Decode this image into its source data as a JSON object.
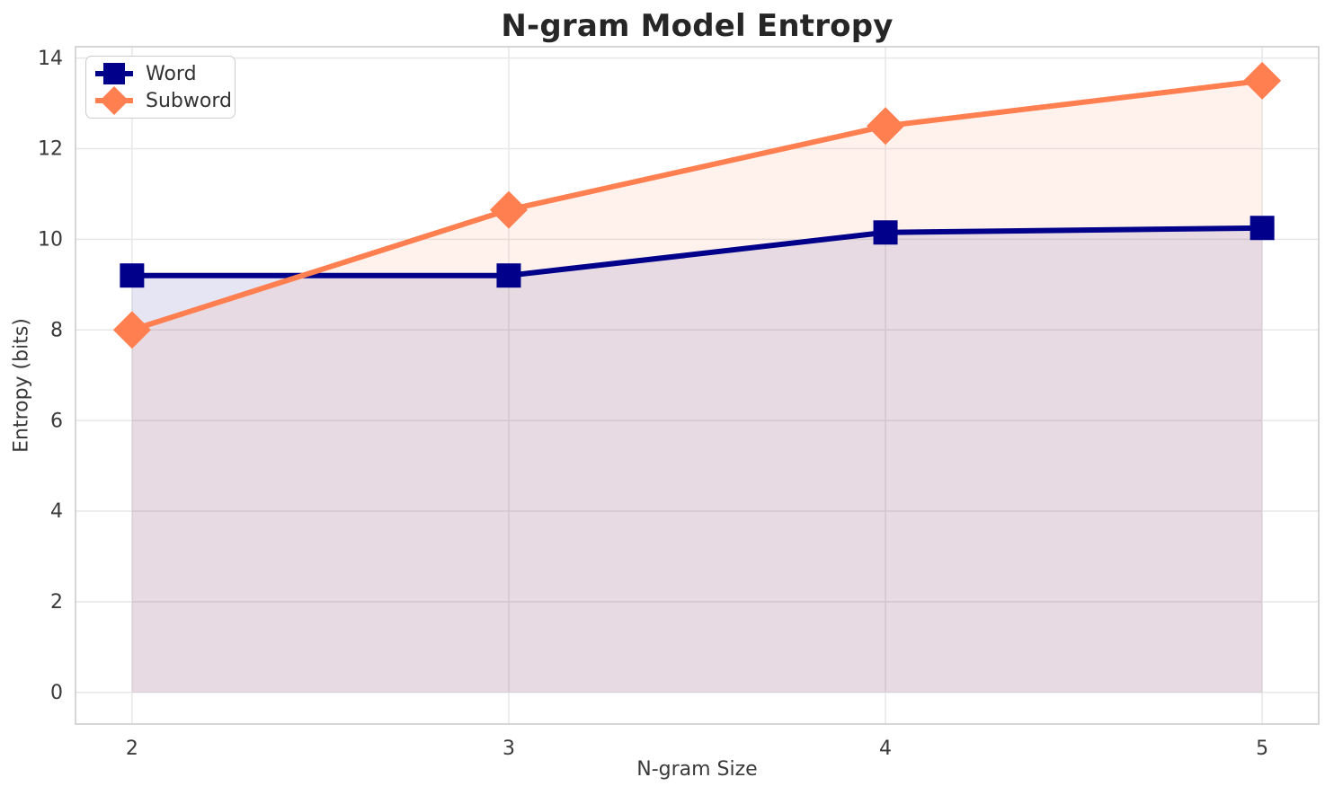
{
  "chart_data": {
    "type": "line",
    "title": "N-gram Model Entropy",
    "xlabel": "N-gram Size",
    "ylabel": "Entropy (bits)",
    "x": [
      2,
      3,
      4,
      5
    ],
    "series": [
      {
        "name": "Word",
        "color": "#00008B",
        "marker": "square",
        "values": [
          9.2,
          9.2,
          10.15,
          10.25
        ],
        "fill_to_zero": true,
        "fill_opacity": 0.1
      },
      {
        "name": "Subword",
        "color": "#FF7F50",
        "marker": "diamond",
        "values": [
          8.0,
          10.65,
          12.5,
          13.5
        ],
        "fill_to_zero": true,
        "fill_opacity": 0.1
      }
    ],
    "xticks": [
      2,
      3,
      4,
      5
    ],
    "yticks": [
      0,
      2,
      4,
      6,
      8,
      10,
      12,
      14
    ],
    "xlim": [
      1.85,
      5.15
    ],
    "ylim": [
      -0.7,
      14.25
    ],
    "grid": true,
    "legend": {
      "position": "upper-left"
    },
    "style": {
      "grid_color": "#E7E7E7",
      "spine_color": "#CCCCCC",
      "tick_text_color": "#3A3A3A",
      "background": "#FFFFFF",
      "line_width": 6
    }
  }
}
